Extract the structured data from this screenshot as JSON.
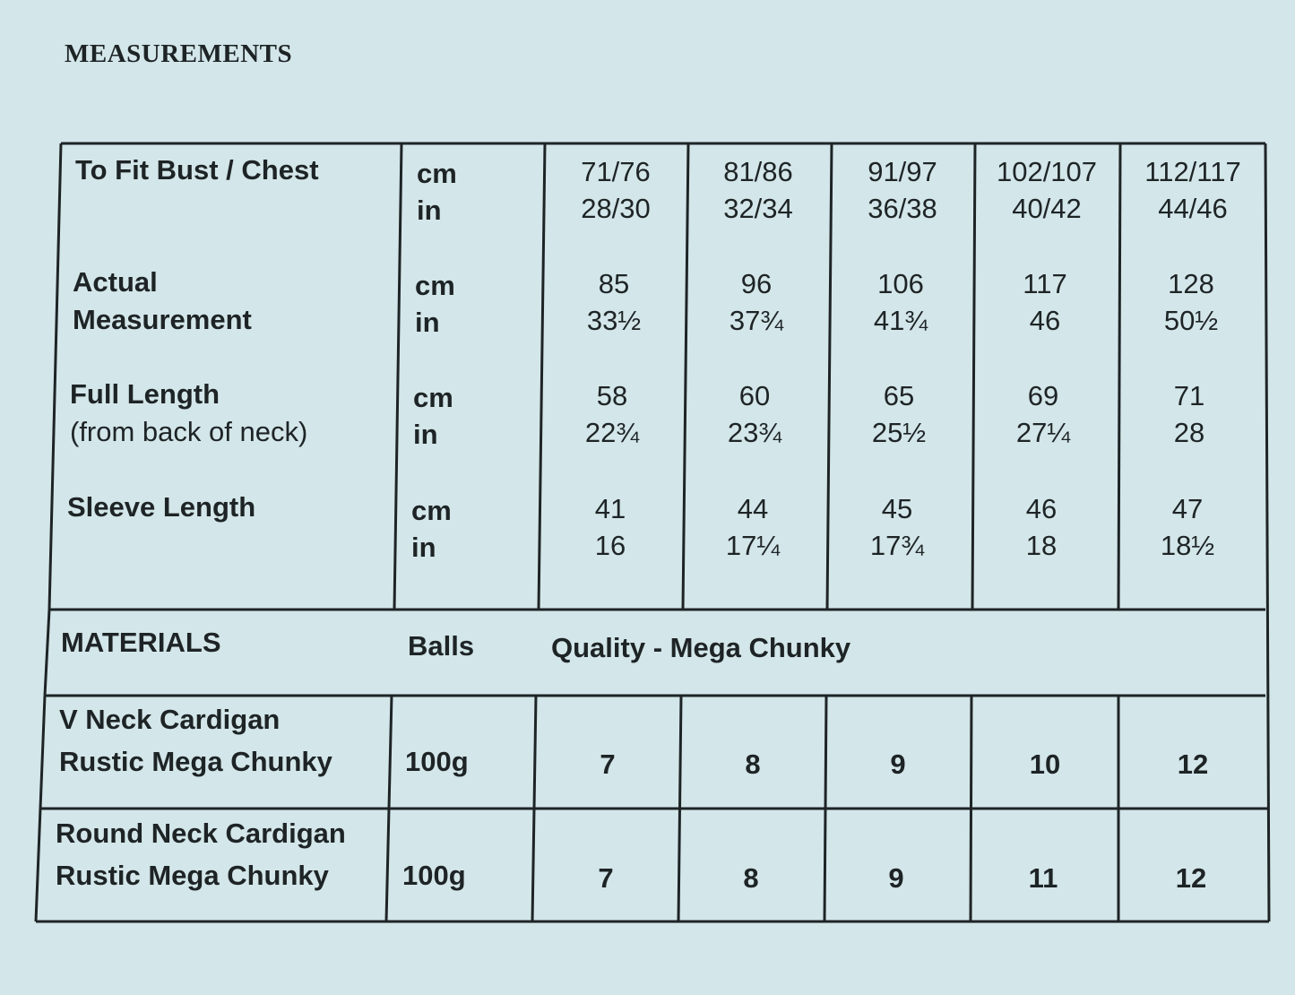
{
  "title": "MEASUREMENTS",
  "measurements": {
    "rows": [
      {
        "label": [
          "To Fit Bust / Chest"
        ],
        "units": [
          "cm",
          "in"
        ],
        "sizes": [
          [
            "71/76",
            "28/30"
          ],
          [
            "81/86",
            "32/34"
          ],
          [
            "91/97",
            "36/38"
          ],
          [
            "102/107",
            "40/42"
          ],
          [
            "112/117",
            "44/46"
          ]
        ]
      },
      {
        "label": [
          "Actual",
          "Measurement"
        ],
        "units": [
          "cm",
          "in"
        ],
        "sizes": [
          [
            "85",
            "33½"
          ],
          [
            "96",
            "37¾"
          ],
          [
            "106",
            "41¾"
          ],
          [
            "117",
            "46"
          ],
          [
            "128",
            "50½"
          ]
        ]
      },
      {
        "label": [
          "Full Length"
        ],
        "note": "(from back of neck)",
        "units": [
          "cm",
          "in"
        ],
        "sizes": [
          [
            "58",
            "22¾"
          ],
          [
            "60",
            "23¾"
          ],
          [
            "65",
            "25½"
          ],
          [
            "69",
            "27¼"
          ],
          [
            "71",
            "28"
          ]
        ]
      },
      {
        "label": [
          "Sleeve Length"
        ],
        "units": [
          "cm",
          "in"
        ],
        "sizes": [
          [
            "41",
            "16"
          ],
          [
            "44",
            "17¼"
          ],
          [
            "45",
            "17¾"
          ],
          [
            "46",
            "18"
          ],
          [
            "47",
            "18½"
          ]
        ]
      }
    ]
  },
  "materials": {
    "header": {
      "title": "MATERIALS",
      "unit": "Balls",
      "quality": "Quality - Mega Chunky"
    },
    "rows": [
      {
        "name": [
          "V Neck Cardigan",
          "Rustic Mega Chunky"
        ],
        "weight": "100g",
        "balls": [
          7,
          8,
          9,
          10,
          12
        ]
      },
      {
        "name": [
          "Round Neck Cardigan",
          "Rustic Mega Chunky"
        ],
        "weight": "100g",
        "balls": [
          7,
          8,
          9,
          11,
          12
        ]
      }
    ]
  }
}
